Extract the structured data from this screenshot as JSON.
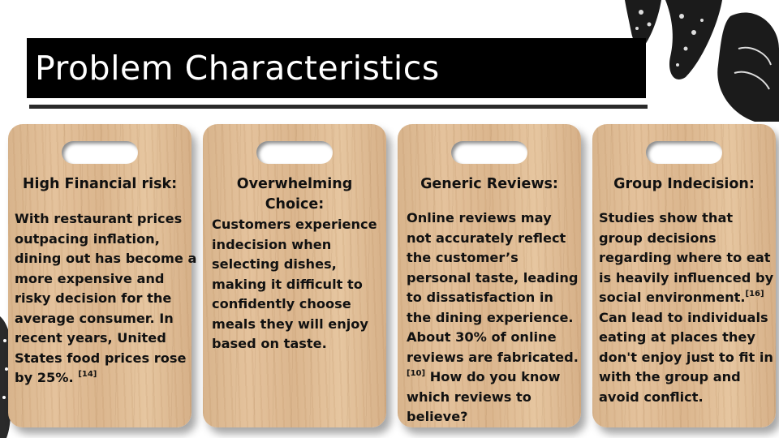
{
  "slide": {
    "title": "Problem Characteristics"
  },
  "cards": [
    {
      "heading": "High Financial risk:",
      "lines": [
        "With restaurant prices",
        "outpacing inflation,",
        "dining out has become a",
        "more expensive and",
        "risky decision for the",
        "average consumer. In",
        "recent years, United",
        "States food prices rose",
        "by 25%."
      ],
      "citation": "[14]"
    },
    {
      "heading_line1": "Overwhelming",
      "heading_line2": "Choice:",
      "lines": [
        "Customers experience",
        "indecision when",
        "selecting dishes,",
        "making it difficult to",
        "confidently choose",
        "meals they will enjoy",
        "based on taste."
      ]
    },
    {
      "heading": "Generic Reviews:",
      "lines": [
        "Online reviews may",
        "not accurately reflect",
        "the customer’s",
        "personal taste, leading",
        "to dissatisfaction in",
        "the dining experience.",
        "About 30% of online",
        "reviews are fabricated."
      ],
      "citation": "[10]",
      "after_citation": " How do you know",
      "tail_lines": [
        "which reviews to",
        "believe?"
      ]
    },
    {
      "heading": "Group Indecision:",
      "lines": [
        "Studies show that",
        "group decisions",
        "regarding where to eat",
        "is heavily influenced by"
      ],
      "line5_text": "social environment.",
      "citation": "[16]",
      "tail_lines": [
        "Can lead to individuals",
        "eating at places they",
        "don't enjoy just to fit in",
        "with the group and",
        "avoid conflict."
      ]
    }
  ],
  "decorations": {
    "top_right": "bread-sketch-icon",
    "left_edge": "bread-sketch-icon"
  }
}
